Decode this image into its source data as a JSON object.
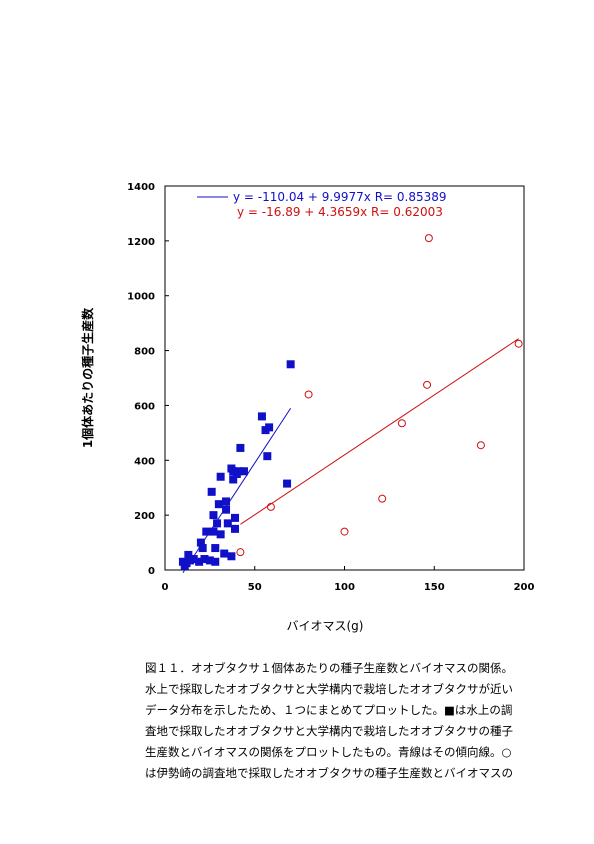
{
  "chart_data": {
    "type": "scatter",
    "x_label": "バイオマス(g)",
    "y_label": "1個体あたりの種子生産数",
    "xlim": [
      0,
      200
    ],
    "xticks": [
      0,
      50,
      100,
      150,
      200
    ],
    "ylim": [
      0,
      1400
    ],
    "yticks": [
      0,
      200,
      400,
      600,
      800,
      1000,
      1200,
      1400
    ],
    "series": [
      {
        "color": "#1010c8",
        "marker": "square",
        "x": [
          10,
          11,
          12,
          13,
          14,
          16,
          19,
          20,
          21,
          22,
          23,
          25,
          26,
          27,
          27,
          28,
          28,
          29,
          30,
          31,
          31,
          33,
          34,
          34,
          35,
          37,
          37,
          38,
          38,
          39,
          39,
          40,
          41,
          42,
          44,
          54,
          56,
          57,
          58,
          68,
          70
        ],
        "values": [
          30,
          15,
          25,
          55,
          35,
          40,
          30,
          100,
          80,
          40,
          140,
          35,
          285,
          200,
          140,
          30,
          80,
          170,
          240,
          340,
          130,
          60,
          250,
          220,
          170,
          50,
          370,
          330,
          360,
          190,
          150,
          350,
          360,
          445,
          360,
          560,
          510,
          415,
          520,
          315,
          750
        ],
        "fit": {
          "intercept": -110.04,
          "slope": 9.9977,
          "r": 0.85389,
          "label": "y = -110.04 + 9.9977x  R= 0.85389"
        }
      },
      {
        "color": "#d01010",
        "marker": "circle-open",
        "x": [
          42,
          59,
          80,
          100,
          121,
          132,
          146,
          147,
          176,
          197
        ],
        "values": [
          65,
          230,
          640,
          140,
          260,
          535,
          675,
          1210,
          455,
          825
        ],
        "fit": {
          "intercept": -16.89,
          "slope": 4.3659,
          "r": 0.62003,
          "label": "y = -16.89 + 4.3659x  R= 0.62003"
        }
      }
    ]
  },
  "caption_lines": [
    "図１１．オオブタクサ１個体あたりの種子生産数とバイオマスの関係。",
    "水上で採取したオオブタクサと大学構内で栽培したオオブタクサが近い",
    "データ分布を示したため、１つにまとめてプロットした。■は水上の調",
    "査地で採取したオオブタクサと大学構内で栽培したオオブタクサの種子",
    "生産数とバイオマスの関係をプロットしたもの。青線はその傾向線。○",
    "は伊勢崎の調査地で採取したオオブタクサの種子生産数とバイオマスの"
  ]
}
